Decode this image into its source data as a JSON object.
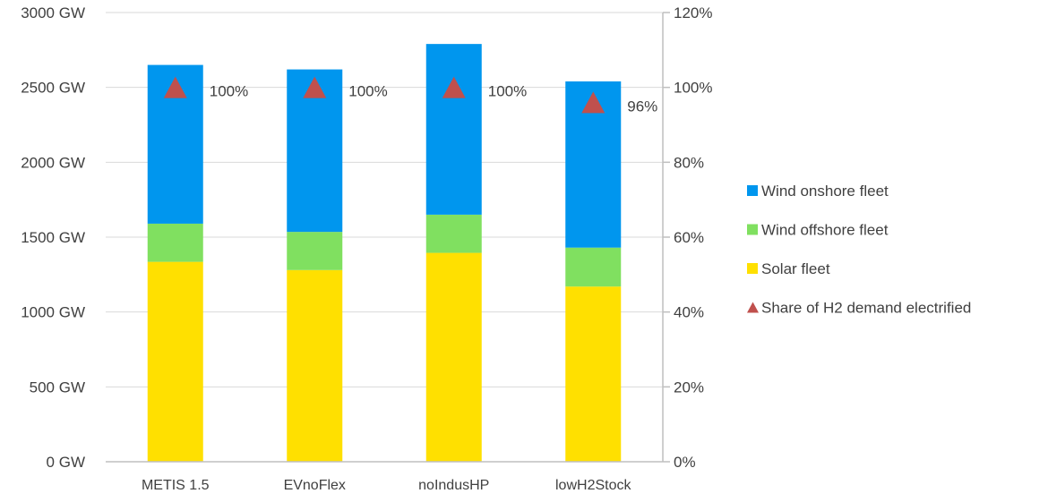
{
  "chart_data": {
    "type": "bar",
    "stacked": true,
    "categories": [
      "METIS 1.5",
      "EVnoFlex",
      "noIndusHP",
      "lowH2Stock"
    ],
    "series": [
      {
        "name": "Solar fleet",
        "color": "#FFE000",
        "values": [
          1335,
          1280,
          1395,
          1170
        ]
      },
      {
        "name": "Wind offshore fleet",
        "color": "#80E060",
        "values": [
          255,
          255,
          255,
          260
        ]
      },
      {
        "name": "Wind onshore fleet",
        "color": "#0096EE",
        "values": [
          1060,
          1085,
          1140,
          1110
        ]
      }
    ],
    "secondary_series": {
      "name": "Share of H2 demand electrified",
      "type": "scatter",
      "marker": "triangle",
      "color": "#C0504D",
      "values": [
        100,
        100,
        100,
        96
      ],
      "labels": [
        "100%",
        "100%",
        "100%",
        "96%"
      ]
    },
    "y_axis_left": {
      "min": 0,
      "max": 3000,
      "step": 500,
      "ticks": [
        "0 GW",
        "500 GW",
        "1000 GW",
        "1500 GW",
        "2000 GW",
        "2500 GW",
        "3000 GW"
      ]
    },
    "y_axis_right": {
      "min": 0,
      "max": 120,
      "step": 20,
      "ticks": [
        "0%",
        "20%",
        "40%",
        "60%",
        "80%",
        "100%",
        "120%"
      ]
    },
    "legend_position": "right",
    "legend_order": [
      "Wind onshore fleet",
      "Wind offshore fleet",
      "Solar fleet",
      "Share of H2 demand electrified"
    ],
    "grid": true,
    "gridColor": "#D9D9D9",
    "axisColor": "#BFBFBF",
    "title": "",
    "xlabel": "",
    "ylabel": ""
  }
}
